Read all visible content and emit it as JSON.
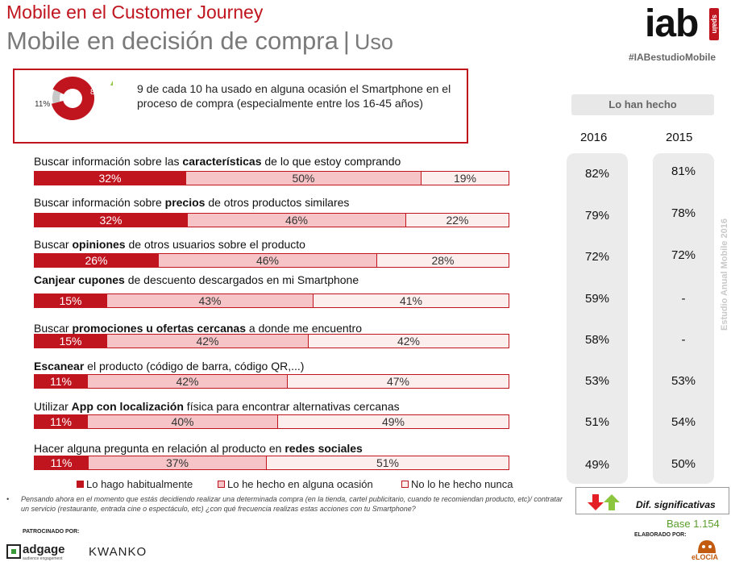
{
  "header": {
    "title": "Mobile en el Customer Journey",
    "subtitle": "Mobile en decisión de compra",
    "subtitle_sep": "|",
    "subtitle_sub": "Uso",
    "logo_text": "iab",
    "logo_spain": "spain",
    "hashtag": "#IABestudioMobile"
  },
  "highlight": {
    "donut_main": "89%",
    "donut_rest": "11%",
    "text": "9 de cada 10 ha usado en alguna ocasión el Smartphone en el proceso de compra (especialmente entre los 16-45 años)"
  },
  "rows": [
    {
      "pre": "Buscar información sobre las ",
      "bold": "características",
      "post": " de lo que estoy comprando"
    },
    {
      "pre": "Buscar información sobre ",
      "bold": "precios",
      "post": " de otros productos similares"
    },
    {
      "pre": "Buscar ",
      "bold": "opiniones",
      "post": " de otros usuarios sobre el producto"
    },
    {
      "pre": "",
      "bold": "Canjear cupones",
      "post": " de descuento descargados en mi Smartphone"
    },
    {
      "pre": "Buscar ",
      "bold": "promociones u ofertas cercanas",
      "post": " a donde me encuentro"
    },
    {
      "pre": "",
      "bold": "Escanear",
      "post": " el producto (código de barra, código QR,...)"
    },
    {
      "pre": "Utilizar ",
      "bold": "App con localización",
      "post": " física para encontrar alternativas cercanas"
    },
    {
      "pre": "Hacer alguna pregunta en relación al producto en ",
      "bold": "redes sociales",
      "post": ""
    }
  ],
  "legend": [
    {
      "label": "Lo hago habitualmente",
      "color": "#c0151f"
    },
    {
      "label": "Lo he hecho en alguna ocasión",
      "color": "#f6c4c6"
    },
    {
      "label": "No lo he hecho nunca",
      "color": "#fdeeee"
    }
  ],
  "right_panel": {
    "header": "Lo han hecho",
    "years": [
      "2016",
      "2015"
    ],
    "values_2016": [
      "82%",
      "79%",
      "72%",
      "59%",
      "58%",
      "53%",
      "51%",
      "49%"
    ],
    "values_2015": [
      "81%",
      "78%",
      "72%",
      "-",
      "-",
      "53%",
      "54%",
      "50%"
    ]
  },
  "side_text": "Estudio Anual Mobile 2016",
  "dif_label": "Dif. significativas",
  "base": "Base 1.154",
  "footnote_bullet": "•",
  "footnote": "Pensando ahora en el momento que estás decidiendo realizar una determinada compra (en la tienda, cartel publicitario, cuando te recomiendan producto, etc)/ contratar un servicio (restaurante, entrada cine o espectáculo, etc) ¿con qué frecuencia realizas estas acciones con tu Smartphone?",
  "sponsor_label": "PATROCINADO POR:",
  "made_by_label": "ELABORADO POR:",
  "sponsor1": "adgage",
  "sponsor1_sub": "audience engagement",
  "sponsor2": "KWANKO",
  "maker": "eLOCIA",
  "colors": {
    "accent": "#c0151f",
    "mid": "#f6c4c6",
    "light": "#fdeeee",
    "arrow_down": "#e31e24",
    "arrow_up": "#8cc63f"
  },
  "chart_data": {
    "type": "bar",
    "orientation": "horizontal",
    "stacked": true,
    "categories": [
      "Buscar información sobre las características de lo que estoy comprando",
      "Buscar información sobre precios de otros productos similares",
      "Buscar opiniones de otros usuarios sobre el producto",
      "Canjear cupones de descuento descargados en mi Smartphone",
      "Buscar promociones u ofertas cercanas a donde me encuentro",
      "Escanear el producto (código de barra, código QR,...)",
      "Utilizar App con localización física para encontrar alternativas cercanas",
      "Hacer alguna pregunta en relación al producto en redes sociales"
    ],
    "series": [
      {
        "name": "Lo hago habitualmente",
        "values": [
          32,
          32,
          26,
          15,
          15,
          11,
          11,
          11
        ]
      },
      {
        "name": "Lo he hecho en alguna ocasión",
        "values": [
          50,
          46,
          46,
          43,
          42,
          42,
          40,
          37
        ]
      },
      {
        "name": "No lo he hecho nunca",
        "values": [
          19,
          22,
          28,
          41,
          42,
          47,
          49,
          51
        ]
      }
    ],
    "donut": {
      "values": [
        89,
        11
      ]
    },
    "legend_position": "bottom"
  }
}
